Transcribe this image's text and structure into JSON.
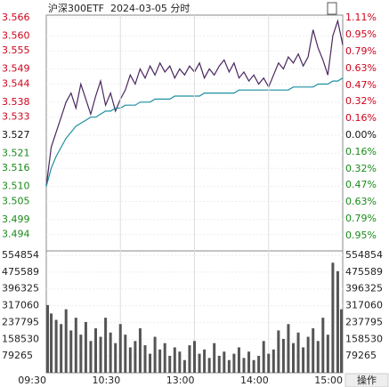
{
  "chart_data": [
    {
      "type": "line",
      "title": "沪深300ETF  2024-03-05 分时",
      "x": [
        0,
        4,
        8,
        12,
        16,
        20,
        24,
        28,
        32,
        36,
        40,
        44,
        48,
        52,
        56,
        60,
        64,
        68,
        72,
        76,
        80,
        84,
        88,
        92,
        96,
        100,
        104,
        108,
        112,
        116,
        120,
        124,
        128,
        132,
        136,
        140,
        144,
        148,
        152,
        156,
        160,
        164,
        168,
        172,
        176,
        180,
        184,
        188,
        192,
        196,
        200,
        204,
        208,
        212,
        216,
        220,
        224,
        228,
        232,
        236,
        240
      ],
      "xlim": [
        0,
        240
      ],
      "series": [
        {
          "color": "#4a2660",
          "values": [
            3.51,
            3.523,
            3.528,
            3.533,
            3.538,
            3.541,
            3.536,
            3.544,
            3.539,
            3.534,
            3.54,
            3.545,
            3.537,
            3.541,
            3.535,
            3.539,
            3.542,
            3.547,
            3.544,
            3.549,
            3.546,
            3.55,
            3.547,
            3.551,
            3.548,
            3.55,
            3.546,
            3.549,
            3.547,
            3.55,
            3.548,
            3.551,
            3.546,
            3.549,
            3.547,
            3.55,
            3.552,
            3.548,
            3.551,
            3.546,
            3.548,
            3.545,
            3.547,
            3.544,
            3.546,
            3.543,
            3.547,
            3.551,
            3.549,
            3.553,
            3.551,
            3.554,
            3.55,
            3.553,
            3.562,
            3.556,
            3.552,
            3.547,
            3.56,
            3.565,
            3.557
          ]
        },
        {
          "color": "#1a8fa0",
          "values": [
            3.51,
            3.516,
            3.52,
            3.523,
            3.526,
            3.528,
            3.53,
            3.531,
            3.532,
            3.533,
            3.533,
            3.534,
            3.535,
            3.535,
            3.536,
            3.536,
            3.537,
            3.537,
            3.537,
            3.538,
            3.538,
            3.538,
            3.539,
            3.539,
            3.539,
            3.539,
            3.54,
            3.54,
            3.54,
            3.54,
            3.54,
            3.54,
            3.541,
            3.541,
            3.541,
            3.541,
            3.541,
            3.541,
            3.541,
            3.542,
            3.542,
            3.542,
            3.542,
            3.542,
            3.542,
            3.542,
            3.542,
            3.542,
            3.542,
            3.542,
            3.543,
            3.543,
            3.543,
            3.543,
            3.543,
            3.544,
            3.544,
            3.544,
            3.545,
            3.545,
            3.546
          ]
        }
      ],
      "ylim": [
        3.488,
        3.566
      ],
      "yticks": [
        3.566,
        {
          "value": 3.56,
          "label": "3.560"
        },
        3.555,
        3.549,
        3.544,
        3.538,
        3.533,
        3.527,
        3.521,
        3.516,
        {
          "value": 3.51,
          "label": "3.510"
        },
        3.505,
        3.499,
        3.494
      ],
      "y2lim": [
        -1.11,
        1.11
      ],
      "y2ticks": [
        {
          "value": 1.11,
          "label": "1.11%"
        },
        {
          "value": 0.95,
          "label": "0.95%"
        },
        {
          "value": 0.79,
          "label": "0.79%"
        },
        {
          "value": 0.63,
          "label": "0.63%"
        },
        {
          "value": 0.47,
          "label": "0.47%"
        },
        {
          "value": 0.32,
          "label": "0.32%"
        },
        {
          "value": 0.16,
          "label": "0.16%"
        },
        {
          "value": 0,
          "label": "0.00%"
        },
        {
          "value": -0.16,
          "label": "0.16%"
        },
        {
          "value": -0.32,
          "label": "0.32%"
        },
        {
          "value": -0.47,
          "label": "0.47%"
        },
        {
          "value": -0.63,
          "label": "0.63%"
        },
        {
          "value": -0.79,
          "label": "0.79%"
        },
        {
          "value": -0.95,
          "label": "0.95%"
        }
      ],
      "up_color": "#d0021b",
      "down_color": "#1a8a1a",
      "grid": true
    },
    {
      "type": "bar",
      "x": [
        0,
        4,
        8,
        12,
        16,
        20,
        24,
        28,
        32,
        36,
        40,
        44,
        48,
        52,
        56,
        60,
        64,
        68,
        72,
        76,
        80,
        84,
        88,
        92,
        96,
        100,
        104,
        108,
        112,
        116,
        120,
        124,
        128,
        132,
        136,
        140,
        144,
        148,
        152,
        156,
        160,
        164,
        168,
        172,
        176,
        180,
        184,
        188,
        192,
        196,
        200,
        204,
        208,
        212,
        216,
        220,
        224,
        228,
        232,
        236,
        240
      ],
      "xlim": [
        0,
        240
      ],
      "xticks": [
        {
          "value": 0,
          "label": "09:30"
        },
        {
          "value": 60,
          "label": "10:30"
        },
        {
          "value": 120,
          "label": "13:00"
        },
        {
          "value": 180,
          "label": "14:00"
        },
        {
          "value": 240,
          "label": "15:00"
        }
      ],
      "values": [
        320000,
        280000,
        250000,
        230000,
        300000,
        200000,
        260000,
        180000,
        240000,
        150000,
        210000,
        170000,
        260000,
        190000,
        140000,
        230000,
        180000,
        120000,
        150000,
        210000,
        130000,
        90000,
        170000,
        110000,
        140000,
        80000,
        120000,
        100000,
        60000,
        130000,
        150000,
        90000,
        110000,
        70000,
        140000,
        80000,
        100000,
        60000,
        90000,
        120000,
        70000,
        100000,
        60000,
        80000,
        150000,
        90000,
        110000,
        200000,
        160000,
        230000,
        140000,
        190000,
        120000,
        170000,
        210000,
        150000,
        260000,
        180000,
        520000,
        480000,
        300000
      ],
      "color": "#555555",
      "ylim": [
        0,
        554854
      ],
      "yticks": [
        554854,
        475589,
        396325,
        317060,
        237795,
        158530,
        79265
      ]
    }
  ],
  "button": "操作"
}
